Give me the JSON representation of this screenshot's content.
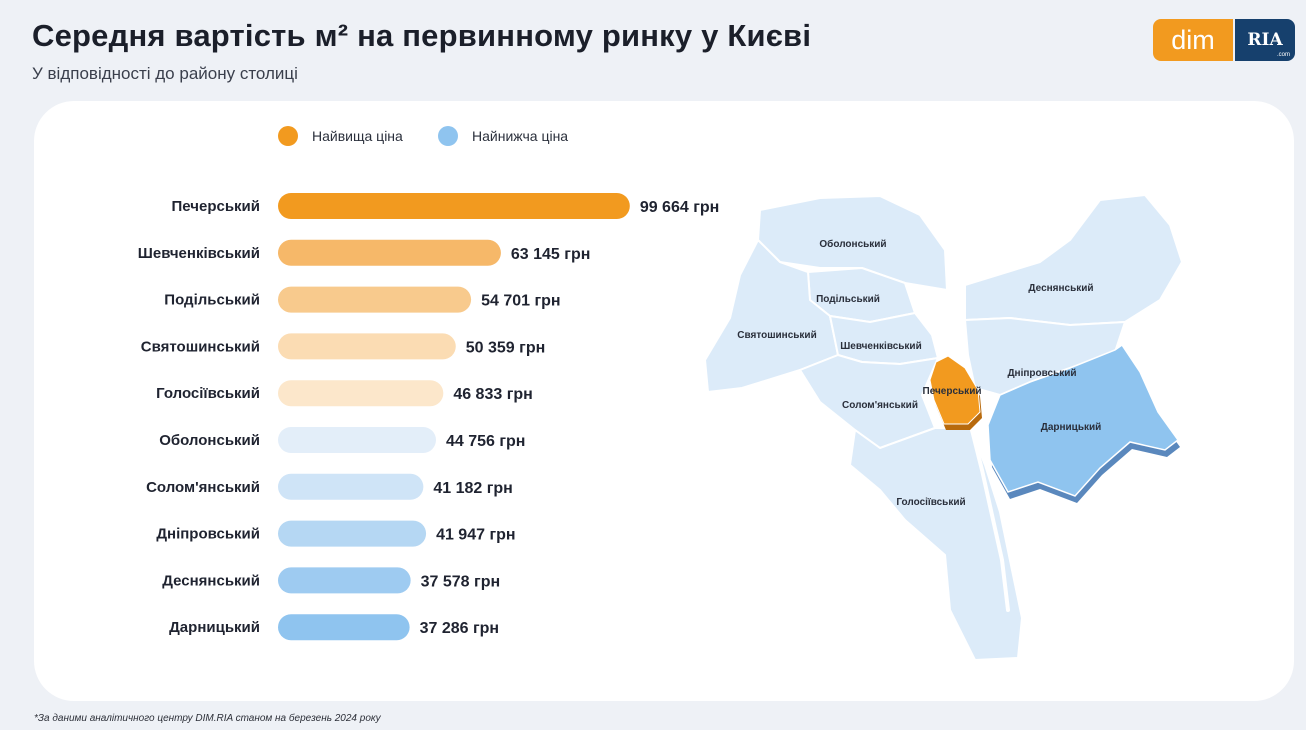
{
  "header": {
    "title": "Середня вартість м² на первинному ринку у Києві",
    "subtitle": "У відповідності до району столиці"
  },
  "logo": {
    "dim": "dim",
    "ria": "RIA",
    "dotcom": ".com"
  },
  "legend": {
    "highest": {
      "label": "Найвища ціна",
      "color": "#f29a1f"
    },
    "lowest": {
      "label": "Найнижча ціна",
      "color": "#8fc4ef"
    }
  },
  "chart_data": {
    "type": "bar",
    "orientation": "horizontal",
    "unit": "грн",
    "categories": [
      "Печерський",
      "Шевченківський",
      "Подільський",
      "Святошинський",
      "Голосіївський",
      "Оболонський",
      "Солом'янський",
      "Дніпровський",
      "Деснянський",
      "Дарницький"
    ],
    "values": [
      99664,
      63145,
      54701,
      50359,
      46833,
      44756,
      41182,
      41947,
      37578,
      37286
    ],
    "value_labels": [
      "99 664 грн",
      "63 145 грн",
      "54 701 грн",
      "50 359 грн",
      "46 833 грн",
      "44 756 грн",
      "41 182 грн",
      "41 947 грн",
      "37 578 грн",
      "37 286 грн"
    ],
    "colors": [
      "#f29a1f",
      "#f6b869",
      "#f8ca8d",
      "#fbdcb3",
      "#fce7cb",
      "#e3eef9",
      "#cfe4f7",
      "#b5d7f3",
      "#9ecbf1",
      "#8fc4ef"
    ],
    "xlim": [
      0,
      100000
    ],
    "grid": false,
    "legend_position": "top"
  },
  "map": {
    "districts": [
      {
        "name": "Оболонський",
        "fill": "#dcebf9"
      },
      {
        "name": "Подільський",
        "fill": "#dcebf9"
      },
      {
        "name": "Святошинський",
        "fill": "#dcebf9"
      },
      {
        "name": "Шевченківський",
        "fill": "#dcebf9"
      },
      {
        "name": "Солом'янський",
        "fill": "#dcebf9"
      },
      {
        "name": "Печерський",
        "fill": "#f29a1f"
      },
      {
        "name": "Голосіївський",
        "fill": "#dcebf9"
      },
      {
        "name": "Деснянський",
        "fill": "#dcebf9"
      },
      {
        "name": "Дніпровський",
        "fill": "#dcebf9"
      },
      {
        "name": "Дарницький",
        "fill": "#8fc4ef"
      }
    ]
  },
  "footnote": "*За даними аналітичного центру DIM.RIA станом на березень 2024 року"
}
